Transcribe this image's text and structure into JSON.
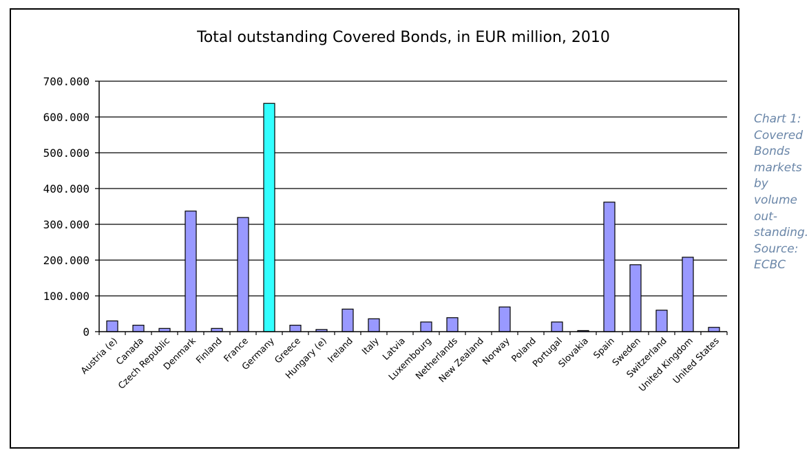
{
  "caption": {
    "lines": [
      "Chart 1:",
      "Covered",
      "Bonds",
      "markets",
      "by",
      "volume",
      "out-",
      "standing.",
      "Source:",
      "ECBC"
    ]
  },
  "chart_data": {
    "type": "bar",
    "title": "Total outstanding Covered Bonds, in EUR million, 2010",
    "xlabel": "",
    "ylabel": "",
    "ylim": [
      0,
      700000
    ],
    "yticks": [
      0,
      100000,
      200000,
      300000,
      400000,
      500000,
      600000,
      700000
    ],
    "ytick_labels": [
      "0",
      "100.000",
      "200.000",
      "300.000",
      "400.000",
      "500.000",
      "600.000",
      "700.000"
    ],
    "grid": true,
    "categories": [
      "Austria (e)",
      "Canada",
      "Czech Republic",
      "Denmark",
      "Finland",
      "France",
      "Germany",
      "Greece",
      "Hungary (e)",
      "Ireland",
      "Italy",
      "Latvia",
      "Luxembourg",
      "Netherlands",
      "New Zealand",
      "Norway",
      "Poland",
      "Portugal",
      "Slovakia",
      "Spain",
      "Sweden",
      "Switzerland",
      "United Kingdom",
      "United States"
    ],
    "values": [
      30000,
      18000,
      9000,
      337000,
      9000,
      319000,
      638000,
      18000,
      6000,
      63000,
      36000,
      0,
      27000,
      39000,
      0,
      69000,
      0,
      27000,
      3000,
      362000,
      187000,
      60000,
      208000,
      12000
    ],
    "colors": {
      "default": "#9999ff",
      "highlight": "#33ffff",
      "highlight_category": "Germany"
    }
  }
}
